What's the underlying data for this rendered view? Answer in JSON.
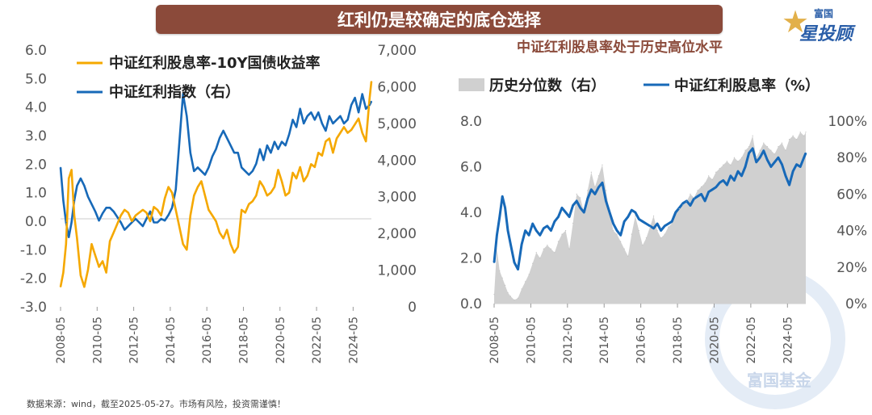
{
  "banner": {
    "title": "红利仍是较确定的底仓选择"
  },
  "logo": {
    "small": "富国",
    "big": "星投顾"
  },
  "watermark": {
    "text": "富国基金"
  },
  "source": {
    "text": "数据来源：wind，截至2025-05-27。市场有风险，投资需谨慎！"
  },
  "colors": {
    "orange": "#f5a800",
    "blue": "#1769b8",
    "gray_fill": "#d0d0d0",
    "banner": "#8b4a3a",
    "title": "#8b4a3a"
  },
  "chart_data": [
    {
      "type": "line",
      "title": "",
      "legend": [
        "中证红利股息率-10Y国债收益率",
        "中证红利指数（右）"
      ],
      "x_tick_labels": [
        "2008-05",
        "2010-05",
        "2012-05",
        "2014-05",
        "2016-05",
        "2018-05",
        "2020-05",
        "2022-05",
        "2024-05"
      ],
      "y_left_ticks": [
        "6.0",
        "5.0",
        "4.0",
        "3.0",
        "2.0",
        "1.0",
        "0.0",
        "-1.0",
        "-2.0",
        "-3.0"
      ],
      "y_right_ticks": [
        "7,000",
        "6,000",
        "5,000",
        "4,000",
        "3,000",
        "2,000",
        "1,000",
        "0"
      ],
      "ylim_left": [
        -3,
        6
      ],
      "ylim_right": [
        0,
        7000
      ],
      "series": [
        {
          "name": "中证红利股息率-10Y国债收益率",
          "axis": "left",
          "x": [
            2008.4,
            2008.55,
            2008.7,
            2008.85,
            2009.0,
            2009.15,
            2009.3,
            2009.5,
            2009.7,
            2009.9,
            2010.1,
            2010.3,
            2010.5,
            2010.7,
            2010.9,
            2011.1,
            2011.3,
            2011.5,
            2011.7,
            2011.9,
            2012.1,
            2012.3,
            2012.5,
            2012.7,
            2012.9,
            2013.1,
            2013.3,
            2013.5,
            2013.7,
            2013.9,
            2014.1,
            2014.3,
            2014.5,
            2014.7,
            2014.9,
            2015.1,
            2015.3,
            2015.5,
            2015.7,
            2015.9,
            2016.1,
            2016.3,
            2016.5,
            2016.7,
            2016.9,
            2017.1,
            2017.3,
            2017.5,
            2017.7,
            2017.9,
            2018.1,
            2018.3,
            2018.5,
            2018.7,
            2018.9,
            2019.1,
            2019.3,
            2019.5,
            2019.7,
            2019.9,
            2020.1,
            2020.3,
            2020.5,
            2020.7,
            2020.9,
            2021.1,
            2021.3,
            2021.5,
            2021.7,
            2021.9,
            2022.1,
            2022.3,
            2022.5,
            2022.7,
            2022.9,
            2023.1,
            2023.3,
            2023.5,
            2023.7,
            2023.9,
            2024.1,
            2024.3,
            2024.5,
            2024.7,
            2024.9,
            2025.1,
            2025.3,
            2025.4
          ],
          "values": [
            -2.3,
            -1.8,
            -0.8,
            1.5,
            1.8,
            0.2,
            -0.6,
            -1.9,
            -2.3,
            -1.7,
            -0.8,
            -1.2,
            -1.6,
            -1.4,
            -1.8,
            -0.7,
            -0.4,
            -0.1,
            0.2,
            0.4,
            0.3,
            0.0,
            0.2,
            0.3,
            0.4,
            0.3,
            0.0,
            0.5,
            0.4,
            0.2,
            0.8,
            1.2,
            1.0,
            0.4,
            -0.2,
            -0.8,
            -1.0,
            0.2,
            0.9,
            1.2,
            1.4,
            0.9,
            0.4,
            0.2,
            0.0,
            -0.4,
            -0.6,
            -0.3,
            -0.8,
            -1.1,
            -0.9,
            0.4,
            0.3,
            0.6,
            0.7,
            0.9,
            1.4,
            1.2,
            0.9,
            1.0,
            1.2,
            1.8,
            1.4,
            0.9,
            1.0,
            1.7,
            1.5,
            1.9,
            1.4,
            1.6,
            2.0,
            1.9,
            2.4,
            2.3,
            2.8,
            2.9,
            2.4,
            2.9,
            3.1,
            3.3,
            3.1,
            3.2,
            3.4,
            3.6,
            3.1,
            2.8,
            4.3,
            4.9
          ]
        },
        {
          "name": "中证红利指数（右）",
          "axis": "right",
          "x": [
            2008.4,
            2008.55,
            2008.7,
            2008.85,
            2009.0,
            2009.15,
            2009.3,
            2009.5,
            2009.7,
            2009.9,
            2010.1,
            2010.3,
            2010.5,
            2010.7,
            2010.9,
            2011.1,
            2011.3,
            2011.5,
            2011.7,
            2011.9,
            2012.1,
            2012.3,
            2012.5,
            2012.7,
            2012.9,
            2013.1,
            2013.3,
            2013.5,
            2013.7,
            2013.9,
            2014.1,
            2014.3,
            2014.5,
            2014.7,
            2014.9,
            2015.1,
            2015.3,
            2015.5,
            2015.7,
            2015.9,
            2016.1,
            2016.3,
            2016.5,
            2016.7,
            2016.9,
            2017.1,
            2017.3,
            2017.5,
            2017.7,
            2017.9,
            2018.1,
            2018.3,
            2018.5,
            2018.7,
            2018.9,
            2019.1,
            2019.3,
            2019.5,
            2019.7,
            2019.9,
            2020.1,
            2020.3,
            2020.5,
            2020.7,
            2020.9,
            2021.1,
            2021.3,
            2021.5,
            2021.7,
            2021.9,
            2022.1,
            2022.3,
            2022.5,
            2022.7,
            2022.9,
            2023.1,
            2023.3,
            2023.5,
            2023.7,
            2023.9,
            2024.1,
            2024.3,
            2024.5,
            2024.7,
            2024.9,
            2025.1,
            2025.3,
            2025.4
          ],
          "values": [
            3800,
            2900,
            2300,
            1900,
            2300,
            2900,
            3300,
            3500,
            3300,
            3000,
            2800,
            2600,
            2350,
            2550,
            2700,
            2700,
            2600,
            2450,
            2300,
            2100,
            2200,
            2300,
            2400,
            2300,
            2200,
            2400,
            2600,
            2300,
            2300,
            2400,
            2350,
            2500,
            2700,
            3200,
            4500,
            5800,
            5200,
            4200,
            3700,
            3800,
            3700,
            3600,
            3800,
            4100,
            4300,
            4600,
            4800,
            4600,
            4400,
            4200,
            4200,
            3800,
            3700,
            3600,
            3700,
            3900,
            4300,
            4000,
            4400,
            4200,
            4500,
            4300,
            4500,
            4400,
            4700,
            5100,
            4900,
            5400,
            5000,
            5200,
            5300,
            5100,
            5300,
            5000,
            4800,
            5200,
            5000,
            5100,
            5200,
            5000,
            5100,
            5500,
            5700,
            5300,
            5800,
            5400,
            5500,
            5600
          ]
        }
      ]
    },
    {
      "type": "area",
      "title": "中证红利股息率处于历史高位水平",
      "legend": [
        "历史分位数（右）",
        "中证红利股息率（%）"
      ],
      "x_tick_labels": [
        "2008-05",
        "2010-05",
        "2012-05",
        "2014-05",
        "2016-05",
        "2018-05",
        "2020-05",
        "2022-05",
        "2024-05"
      ],
      "y_left_ticks": [
        "8.0",
        "6.0",
        "4.0",
        "2.0",
        "0.0"
      ],
      "y_right_ticks": [
        "100%",
        "80%",
        "60%",
        "40%",
        "20%",
        "0%"
      ],
      "ylim_left": [
        0,
        8
      ],
      "ylim_right": [
        0,
        100
      ],
      "series": [
        {
          "name": "历史分位数（右）",
          "axis": "right",
          "kind": "area",
          "x": [
            2008.4,
            2008.55,
            2008.7,
            2008.85,
            2009.0,
            2009.15,
            2009.3,
            2009.5,
            2009.7,
            2009.9,
            2010.1,
            2010.3,
            2010.5,
            2010.7,
            2010.9,
            2011.1,
            2011.3,
            2011.5,
            2011.7,
            2011.9,
            2012.1,
            2012.3,
            2012.5,
            2012.7,
            2012.9,
            2013.1,
            2013.3,
            2013.5,
            2013.7,
            2013.9,
            2014.1,
            2014.3,
            2014.5,
            2014.7,
            2014.9,
            2015.1,
            2015.3,
            2015.5,
            2015.7,
            2015.9,
            2016.1,
            2016.3,
            2016.5,
            2016.7,
            2016.9,
            2017.1,
            2017.3,
            2017.5,
            2017.7,
            2017.9,
            2018.1,
            2018.3,
            2018.5,
            2018.7,
            2018.9,
            2019.1,
            2019.3,
            2019.5,
            2019.7,
            2019.9,
            2020.1,
            2020.3,
            2020.5,
            2020.7,
            2020.9,
            2021.1,
            2021.3,
            2021.5,
            2021.7,
            2021.9,
            2022.1,
            2022.3,
            2022.5,
            2022.7,
            2022.9,
            2023.1,
            2023.3,
            2023.5,
            2023.7,
            2023.9,
            2024.1,
            2024.3,
            2024.5,
            2024.7,
            2024.9,
            2025.1,
            2025.3,
            2025.4
          ],
          "values": [
            5,
            30,
            18,
            14,
            10,
            6,
            4,
            2,
            3,
            8,
            12,
            16,
            22,
            28,
            25,
            30,
            32,
            30,
            28,
            34,
            38,
            40,
            30,
            44,
            60,
            58,
            50,
            62,
            72,
            64,
            70,
            76,
            62,
            50,
            40,
            38,
            34,
            30,
            26,
            38,
            48,
            40,
            32,
            36,
            42,
            48,
            40,
            36,
            38,
            42,
            44,
            50,
            52,
            54,
            56,
            60,
            58,
            62,
            64,
            66,
            70,
            68,
            72,
            74,
            76,
            78,
            76,
            80,
            78,
            80,
            84,
            86,
            92,
            80,
            84,
            88,
            86,
            84,
            82,
            86,
            88,
            84,
            90,
            92,
            90,
            94,
            92,
            94
          ]
        },
        {
          "name": "中证红利股息率（%）",
          "axis": "left",
          "kind": "line",
          "x": [
            2008.4,
            2008.55,
            2008.7,
            2008.85,
            2009.0,
            2009.15,
            2009.3,
            2009.5,
            2009.7,
            2009.9,
            2010.1,
            2010.3,
            2010.5,
            2010.7,
            2010.9,
            2011.1,
            2011.3,
            2011.5,
            2011.7,
            2011.9,
            2012.1,
            2012.3,
            2012.5,
            2012.7,
            2012.9,
            2013.1,
            2013.3,
            2013.5,
            2013.7,
            2013.9,
            2014.1,
            2014.3,
            2014.5,
            2014.7,
            2014.9,
            2015.1,
            2015.3,
            2015.5,
            2015.7,
            2015.9,
            2016.1,
            2016.3,
            2016.5,
            2016.7,
            2016.9,
            2017.1,
            2017.3,
            2017.5,
            2017.7,
            2017.9,
            2018.1,
            2018.3,
            2018.5,
            2018.7,
            2018.9,
            2019.1,
            2019.3,
            2019.5,
            2019.7,
            2019.9,
            2020.1,
            2020.3,
            2020.5,
            2020.7,
            2020.9,
            2021.1,
            2021.3,
            2021.5,
            2021.7,
            2021.9,
            2022.1,
            2022.3,
            2022.5,
            2022.7,
            2022.9,
            2023.1,
            2023.3,
            2023.5,
            2023.7,
            2023.9,
            2024.1,
            2024.3,
            2024.5,
            2024.7,
            2024.9,
            2025.1,
            2025.3,
            2025.4
          ],
          "values": [
            1.8,
            3.0,
            3.8,
            4.7,
            4.2,
            3.2,
            2.6,
            1.8,
            1.5,
            2.6,
            3.2,
            3.0,
            3.5,
            3.2,
            3.0,
            3.3,
            3.4,
            3.2,
            3.6,
            3.8,
            4.2,
            4.0,
            3.8,
            4.3,
            4.5,
            4.2,
            4.0,
            4.6,
            5.0,
            4.8,
            5.1,
            5.3,
            4.5,
            4.0,
            3.5,
            3.2,
            3.0,
            3.6,
            3.8,
            4.1,
            4.0,
            3.7,
            3.6,
            3.5,
            3.4,
            3.3,
            3.5,
            3.2,
            3.4,
            3.5,
            3.6,
            4.0,
            4.2,
            4.4,
            4.5,
            4.3,
            4.6,
            4.7,
            4.8,
            4.5,
            4.9,
            5.0,
            5.1,
            5.3,
            5.4,
            5.2,
            5.6,
            5.4,
            5.8,
            5.6,
            6.0,
            6.6,
            6.8,
            6.2,
            6.4,
            6.7,
            6.3,
            6.0,
            6.2,
            6.4,
            6.1,
            5.6,
            5.2,
            5.8,
            6.1,
            6.0,
            6.4,
            6.6
          ]
        }
      ]
    }
  ]
}
